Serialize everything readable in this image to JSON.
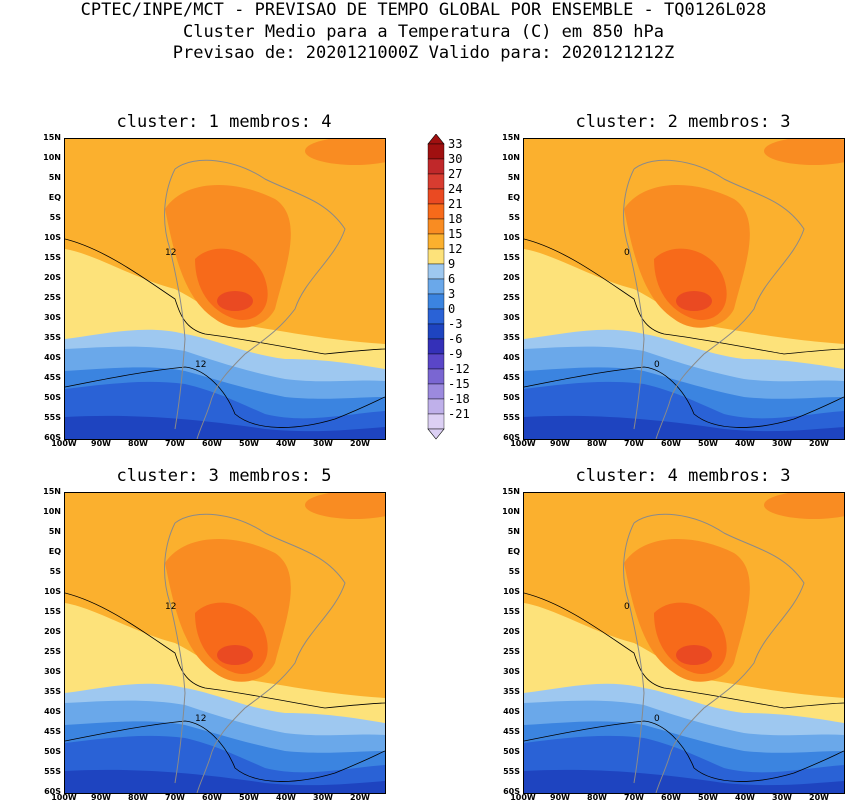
{
  "header": {
    "line1": "CPTEC/INPE/MCT - PREVISAO DE TEMPO GLOBAL POR ENSEMBLE - TQ0126L028",
    "line2": "Cluster Medio para a Temperatura (C) em 850 hPa",
    "line3": "Previsao de: 2020121000Z   Valido para: 2020121212Z"
  },
  "panels": [
    {
      "title": "cluster: 1  membros: 4"
    },
    {
      "title": "cluster: 2  membros: 3"
    },
    {
      "title": "cluster: 3  membros: 5"
    },
    {
      "title": "cluster: 4  membros: 3"
    }
  ],
  "lat_labels": [
    "15N",
    "10N",
    "5N",
    "EQ",
    "5S",
    "10S",
    "15S",
    "20S",
    "25S",
    "30S",
    "35S",
    "40S",
    "45S",
    "50S",
    "55S",
    "60S"
  ],
  "lon_labels": [
    "100W",
    "90W",
    "80W",
    "70W",
    "60W",
    "50W",
    "40W",
    "30W",
    "20W"
  ],
  "contour_labels": [
    "12",
    "12",
    "0",
    "0",
    "12",
    "12",
    "0",
    "0"
  ],
  "colorbar": {
    "labels": [
      "33",
      "30",
      "27",
      "24",
      "21",
      "18",
      "15",
      "12",
      "9",
      "6",
      "3",
      "0",
      "-3",
      "-6",
      "-9",
      "-12",
      "-15",
      "-18",
      "-21"
    ],
    "colors": [
      "#a01010",
      "#c0282a",
      "#d83c30",
      "#ea4a22",
      "#f76a1a",
      "#f98c22",
      "#fbb02e",
      "#fde27a",
      "#9ec8f0",
      "#6aa8ea",
      "#3b84e0",
      "#2a62d6",
      "#1e44c0",
      "#3430b8",
      "#5a46c8",
      "#7a66d2",
      "#9c8ade",
      "#bfb0ea",
      "#dcd0f4"
    ]
  }
}
